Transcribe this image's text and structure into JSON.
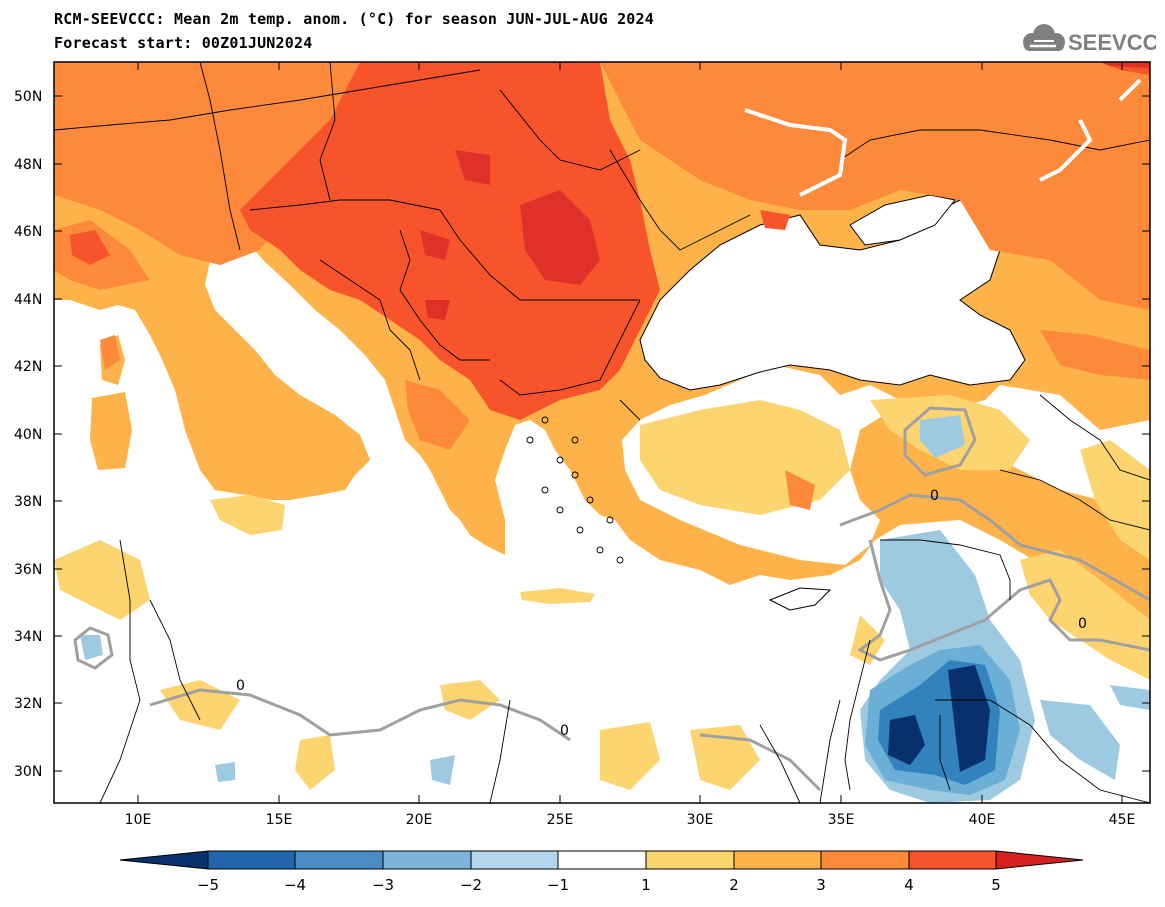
{
  "title": {
    "line1": "RCM-SEEVCCC: Mean 2m temp. anom. (°C) for season JUN-JUL-AUG 2024",
    "line2": "Forecast start: 00Z01JUN2024"
  },
  "logo": {
    "text": "SEEVCCC",
    "icon": "cloud-icon",
    "color": "#808080"
  },
  "map": {
    "lat_labels": [
      "50N",
      "48N",
      "46N",
      "44N",
      "42N",
      "40N",
      "38N",
      "36N",
      "34N",
      "32N",
      "30N"
    ],
    "lon_labels": [
      "10E",
      "15E",
      "20E",
      "25E",
      "30E",
      "35E",
      "40E",
      "45E"
    ],
    "contour_label": "0"
  },
  "colorbar": {
    "labels": [
      "−5",
      "−4",
      "−3",
      "−2",
      "−1",
      "1",
      "2",
      "3",
      "4",
      "5"
    ],
    "colors": [
      "#08306b",
      "#2166ac",
      "#4a8cc4",
      "#7db4dc",
      "#b4d6ec",
      "#ffffff",
      "#fdd570",
      "#fdb24a",
      "#fc8a3a",
      "#f7542c",
      "#d62020"
    ]
  },
  "palette": {
    "ocean": "#ffffff",
    "land_base": "#fdb24a",
    "warm_1": "#fdd570",
    "warm_3": "#fc8a3a",
    "warm_4": "#f7542c",
    "warm_5": "#e0302a",
    "cool_1": "#9ecae1",
    "cool_2": "#6baed6",
    "cool_3": "#3182bd",
    "cool_4": "#08306b",
    "zero_contour": "#a0a0a0"
  }
}
